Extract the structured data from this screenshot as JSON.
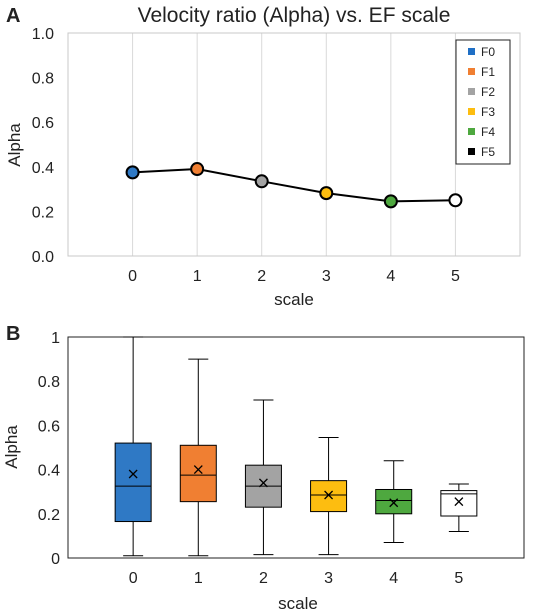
{
  "chart_data": [
    {
      "panel_label": "A",
      "type": "line",
      "title": "Velocity ratio (Alpha) vs. EF scale",
      "xlabel": "scale",
      "ylabel": "Alpha",
      "x": [
        0,
        1,
        2,
        3,
        4,
        5
      ],
      "xlim": [
        -1,
        6
      ],
      "ylim": [
        0,
        1.0
      ],
      "yticks": [
        "0.0",
        "0.2",
        "0.4",
        "0.6",
        "0.8",
        "1.0"
      ],
      "xticks": [
        "0",
        "1",
        "2",
        "3",
        "4",
        "5"
      ],
      "values": [
        0.375,
        0.39,
        0.335,
        0.282,
        0.245,
        0.25
      ],
      "point_colors": [
        "#2f79c5",
        "#f07f32",
        "#a3a3a3",
        "#fdbd10",
        "#4ea83f",
        "#ffffff"
      ],
      "legend": {
        "placement": "top-right",
        "entries": [
          {
            "label": "F0",
            "color": "#1f6fc5"
          },
          {
            "label": "F1",
            "color": "#f07f32"
          },
          {
            "label": "F2",
            "color": "#a3a3a3"
          },
          {
            "label": "F3",
            "color": "#fdbd10"
          },
          {
            "label": "F4",
            "color": "#4ea83f"
          },
          {
            "label": "F5",
            "color": "#000000"
          }
        ]
      },
      "grid": "vertical"
    },
    {
      "panel_label": "B",
      "type": "box",
      "xlabel": "scale",
      "ylabel": "Alpha",
      "categories": [
        "0",
        "1",
        "2",
        "3",
        "4",
        "5"
      ],
      "ylim": [
        0,
        1
      ],
      "yticks": [
        "0",
        "0.2",
        "0.4",
        "0.6",
        "0.8",
        "1"
      ],
      "boxes": [
        {
          "min": 0.01,
          "q1": 0.165,
          "median": 0.325,
          "q3": 0.52,
          "max": 1.0,
          "mean": 0.38,
          "color": "#2f79c5"
        },
        {
          "min": 0.01,
          "q1": 0.255,
          "median": 0.375,
          "q3": 0.51,
          "max": 0.9,
          "mean": 0.4,
          "color": "#f07f32"
        },
        {
          "min": 0.015,
          "q1": 0.23,
          "median": 0.325,
          "q3": 0.42,
          "max": 0.715,
          "mean": 0.34,
          "color": "#a3a3a3"
        },
        {
          "min": 0.015,
          "q1": 0.21,
          "median": 0.285,
          "q3": 0.35,
          "max": 0.545,
          "mean": 0.285,
          "color": "#fdbd10"
        },
        {
          "min": 0.07,
          "q1": 0.2,
          "median": 0.26,
          "q3": 0.31,
          "max": 0.44,
          "mean": 0.25,
          "color": "#4ea83f"
        },
        {
          "min": 0.12,
          "q1": 0.19,
          "median": 0.29,
          "q3": 0.305,
          "max": 0.335,
          "mean": 0.255,
          "color": "#ffffff"
        }
      ],
      "grid": "none"
    }
  ]
}
